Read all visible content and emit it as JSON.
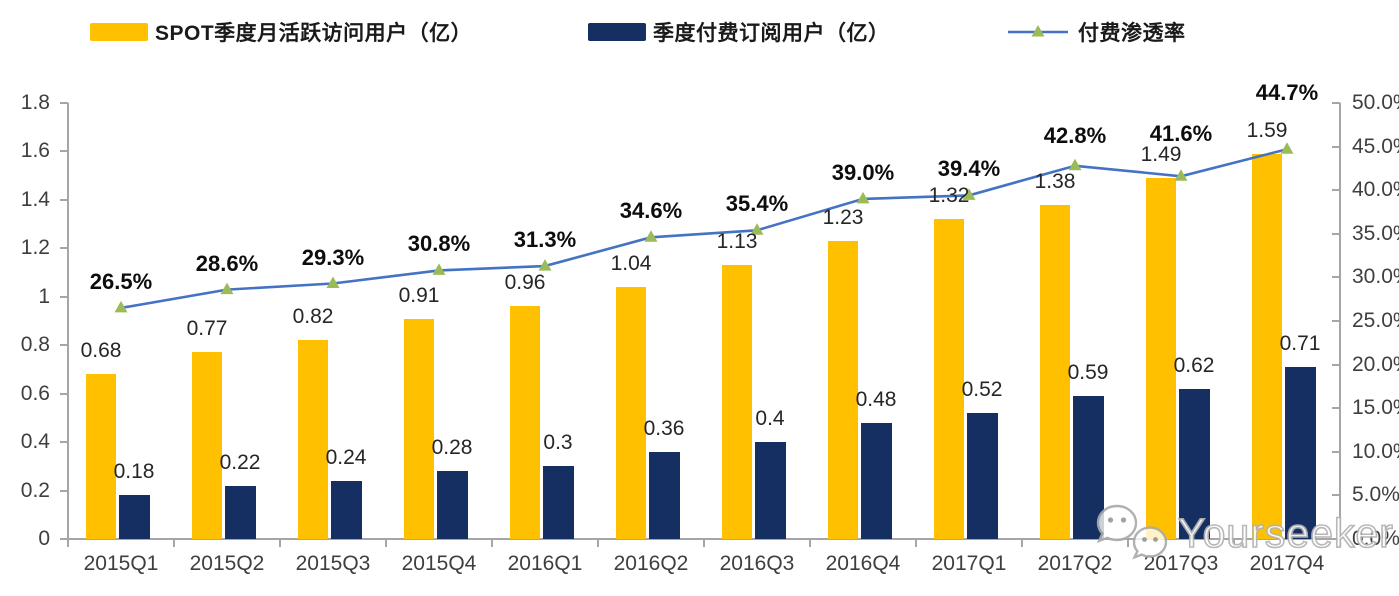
{
  "legend": [
    {
      "label": "SPOT季度月活跃访问用户（亿）",
      "swatch": "bar",
      "color": "#FFC000"
    },
    {
      "label": "季度付费订阅用户（亿）",
      "swatch": "bar",
      "color": "#152F63"
    },
    {
      "label": "付费渗透率",
      "swatch": "line-with-triangle-marker",
      "line_color": "#4472C4",
      "marker_color": "#9BBB59"
    }
  ],
  "chart_data": {
    "type": "combo bar + line",
    "categories": [
      "2015Q1",
      "2015Q2",
      "2015Q3",
      "2015Q4",
      "2016Q1",
      "2016Q2",
      "2016Q3",
      "2016Q4",
      "2017Q1",
      "2017Q2",
      "2017Q3",
      "2017Q4"
    ],
    "series": [
      {
        "name": "SPOT季度月活跃访问用户（亿）",
        "type": "bar",
        "axis": "left",
        "color": "#FFC000",
        "values": [
          0.68,
          0.77,
          0.82,
          0.91,
          0.96,
          1.04,
          1.13,
          1.23,
          1.32,
          1.38,
          1.49,
          1.59
        ],
        "labels": [
          "0.68",
          "0.77",
          "0.82",
          "0.91",
          "0.96",
          "1.04",
          "1.13",
          "1.23",
          "1.32",
          "1.38",
          "1.49",
          "1.59"
        ]
      },
      {
        "name": "季度付费订阅用户（亿）",
        "type": "bar",
        "axis": "left",
        "color": "#152F63",
        "values": [
          0.18,
          0.22,
          0.24,
          0.28,
          0.3,
          0.36,
          0.4,
          0.48,
          0.52,
          0.59,
          0.62,
          0.71
        ],
        "labels": [
          "0.18",
          "0.22",
          "0.24",
          "0.28",
          "0.3",
          "0.36",
          "0.4",
          "0.48",
          "0.52",
          "0.59",
          "0.62",
          "0.71"
        ]
      },
      {
        "name": "付费渗透率",
        "type": "line",
        "axis": "right",
        "color": "#4472C4",
        "marker": "triangle-up",
        "marker_color": "#9BBB59",
        "values": [
          26.5,
          28.6,
          29.3,
          30.8,
          31.3,
          34.6,
          35.4,
          39.0,
          39.4,
          42.8,
          41.6,
          44.7
        ],
        "labels": [
          "26.5%",
          "28.6%",
          "29.3%",
          "30.8%",
          "31.3%",
          "34.6%",
          "35.4%",
          "39.0%",
          "39.4%",
          "42.8%",
          "41.6%",
          "44.7%"
        ]
      }
    ],
    "left_axis": {
      "min": 0,
      "max": 1.8,
      "step": 0.2,
      "tick_labels": [
        "0",
        "0.2",
        "0.4",
        "0.6",
        "0.8",
        "1",
        "1.2",
        "1.4",
        "1.6",
        "1.8"
      ]
    },
    "right_axis": {
      "min": 0,
      "max": 50,
      "step": 5,
      "tick_labels": [
        "0.0%",
        "5.0%",
        "10.0%",
        "15.0%",
        "20.0%",
        "25.0%",
        "30.0%",
        "35.0%",
        "40.0%",
        "45.0%",
        "50.0%"
      ]
    },
    "grid": false,
    "legend_position": "top"
  },
  "watermark": {
    "text": "Yourseeker",
    "icon": "chat-bubbles-icon"
  }
}
